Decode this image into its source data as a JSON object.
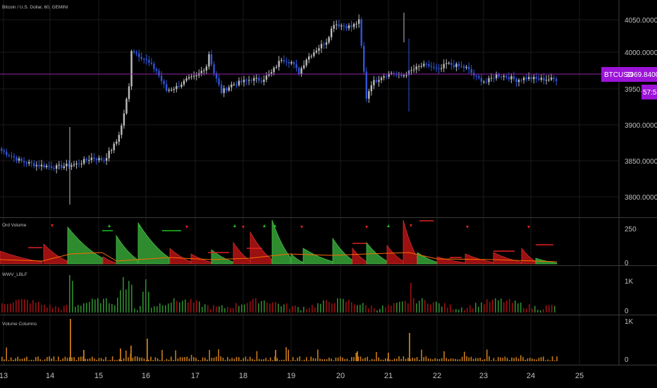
{
  "header": {
    "symbol_title": "Bitcoin / U.S. Dollar, 60, GEMINI"
  },
  "colors": {
    "background": "#000000",
    "grid": "#1a1a1a",
    "divider": "#3a3a3a",
    "candle_up": "#bcbcbc",
    "candle_down": "#2f56d6",
    "price_line": "#8e24aa",
    "price_badge": "#9c14d8",
    "vol_up": "#2e8b2e",
    "vol_down": "#9b1010",
    "marker_red": "#e02020",
    "marker_green": "#20c020",
    "orange_line": "#ff6a00",
    "columns": "#c77a1a",
    "text": "#bfbfbf"
  },
  "price_pane": {
    "y_ticks": [
      "4050.00000000",
      "4000.00000000",
      "3950.00000000",
      "3900.00000000",
      "3850.00000000",
      "3800.00000000"
    ],
    "last_price_label": "BTCUSD",
    "last_price_value": "3969.84000000",
    "countdown_partial": "3950.00",
    "countdown": "57:55"
  },
  "panes": {
    "ord_volume": {
      "title": "Ord Volume",
      "y_ticks": [
        "250",
        "0"
      ]
    },
    "wwv": {
      "title": "WWV_LBLF",
      "y_ticks": [
        "1K",
        "0"
      ]
    },
    "volume_columns": {
      "title": "Volume Columns",
      "y_ticks": [
        "1K",
        "0"
      ]
    }
  },
  "x_axis": {
    "labels": [
      "13",
      "14",
      "15",
      "16",
      "17",
      "18",
      "19",
      "20",
      "21",
      "22",
      "23",
      "24",
      "25"
    ]
  },
  "chart_data": {
    "type": "candlestick",
    "title": "Bitcoin / U.S. Dollar, 60, GEMINI",
    "ylim": [
      3775,
      4065
    ],
    "x_day_labels": [
      "13",
      "14",
      "15",
      "16",
      "17",
      "18",
      "19",
      "20",
      "21",
      "22",
      "23",
      "24",
      "25"
    ],
    "close_path": [
      [
        0,
        3865
      ],
      [
        8,
        3850
      ],
      [
        14,
        3845
      ],
      [
        22,
        3842
      ],
      [
        30,
        3846
      ],
      [
        36,
        3855
      ],
      [
        41,
        3852
      ],
      [
        46,
        3878
      ],
      [
        48,
        3900
      ],
      [
        51,
        3955
      ],
      [
        52,
        4008
      ],
      [
        55,
        4000
      ],
      [
        58,
        3992
      ],
      [
        62,
        3978
      ],
      [
        66,
        3950
      ],
      [
        70,
        3955
      ],
      [
        74,
        3965
      ],
      [
        78,
        3970
      ],
      [
        82,
        3985
      ],
      [
        83,
        4002
      ],
      [
        85,
        3975
      ],
      [
        88,
        3948
      ],
      [
        92,
        3958
      ],
      [
        96,
        3962
      ],
      [
        100,
        3966
      ],
      [
        104,
        3965
      ],
      [
        108,
        3975
      ],
      [
        112,
        3995
      ],
      [
        116,
        3990
      ],
      [
        119,
        3975
      ],
      [
        122,
        3995
      ],
      [
        126,
        4008
      ],
      [
        130,
        4020
      ],
      [
        133,
        4045
      ],
      [
        136,
        4042
      ],
      [
        140,
        4040
      ],
      [
        143,
        4048
      ],
      [
        146,
        3940
      ],
      [
        148,
        3960
      ],
      [
        152,
        3970
      ],
      [
        156,
        3975
      ],
      [
        160,
        3970
      ],
      [
        164,
        3978
      ],
      [
        168,
        3985
      ],
      [
        171,
        3985
      ],
      [
        175,
        3978
      ],
      [
        178,
        3988
      ],
      [
        182,
        3985
      ],
      [
        186,
        3982
      ],
      [
        190,
        3968
      ],
      [
        194,
        3962
      ],
      [
        198,
        3972
      ],
      [
        202,
        3970
      ],
      [
        206,
        3965
      ],
      [
        210,
        3968
      ],
      [
        215,
        3966
      ],
      [
        222,
        3966
      ]
    ],
    "last_close": 3969.84
  }
}
